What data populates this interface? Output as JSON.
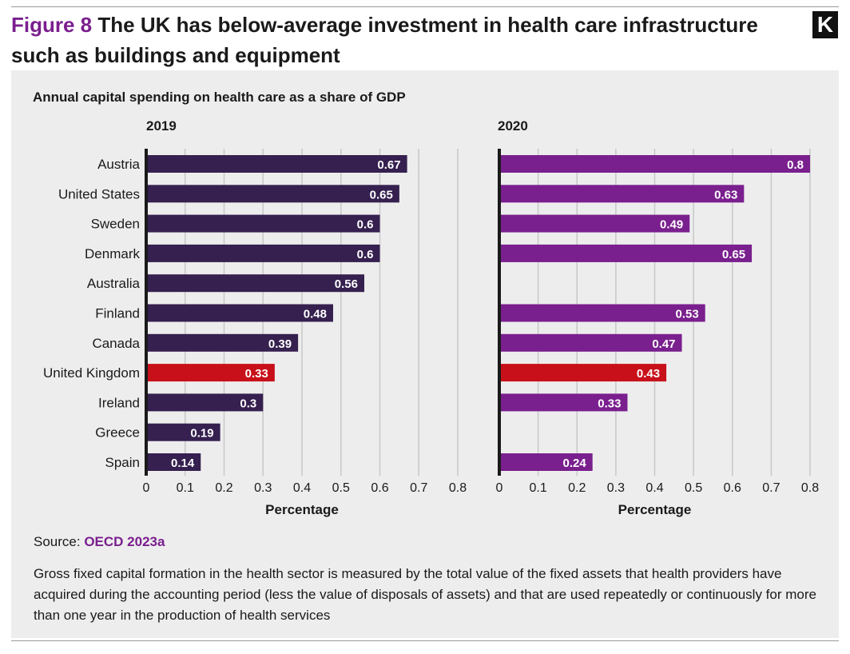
{
  "figure": {
    "label": "Figure 8",
    "title": "The UK has below-average investment in health care infrastructure such as buildings and equipment",
    "logo": "K"
  },
  "chart_data": [
    {
      "type": "bar",
      "orientation": "horizontal",
      "title": "2019",
      "xlabel": "Percentage",
      "xlim": [
        0,
        0.8
      ],
      "xticks": [
        "0",
        "0.1",
        "0.2",
        "0.3",
        "0.4",
        "0.5",
        "0.6",
        "0.7",
        "0.8"
      ],
      "categories": [
        "Austria",
        "United States",
        "Sweden",
        "Denmark",
        "Australia",
        "Finland",
        "Canada",
        "United Kingdom",
        "Ireland",
        "Greece",
        "Spain"
      ],
      "values": [
        0.67,
        0.65,
        0.6,
        0.6,
        0.56,
        0.48,
        0.39,
        0.33,
        0.3,
        0.19,
        0.14
      ],
      "labels": [
        "0.67",
        "0.65",
        "0.6",
        "0.6",
        "0.56",
        "0.48",
        "0.39",
        "0.33",
        "0.3",
        "0.19",
        "0.14"
      ],
      "grid": "vertical",
      "highlight": "United Kingdom"
    },
    {
      "type": "bar",
      "orientation": "horizontal",
      "title": "2020",
      "xlabel": "Percentage",
      "xlim": [
        0,
        0.8
      ],
      "xticks": [
        "0",
        "0.1",
        "0.2",
        "0.3",
        "0.4",
        "0.5",
        "0.6",
        "0.7",
        "0.8"
      ],
      "categories": [
        "Austria",
        "United States",
        "Sweden",
        "Denmark",
        "Australia",
        "Finland",
        "Canada",
        "United Kingdom",
        "Ireland",
        "Greece",
        "Spain"
      ],
      "values": [
        0.8,
        0.63,
        0.49,
        0.65,
        null,
        0.53,
        0.47,
        0.43,
        0.33,
        null,
        0.24
      ],
      "labels": [
        "0.8",
        "0.63",
        "0.49",
        "0.65",
        "",
        "0.53",
        "0.47",
        "0.43",
        "0.33",
        "",
        "0.24"
      ],
      "grid": "vertical",
      "highlight": "United Kingdom"
    }
  ],
  "chart_subtitle": "Annual capital spending on health care as a share of GDP",
  "colors": {
    "bar_2019": "#35204f",
    "bar_2020": "#7a1f8e",
    "highlight": "#c8101a",
    "axis": "#1a1a1a",
    "grid": "#c8c8c8",
    "panel_bg": "#ededed"
  },
  "source": {
    "prefix": "Source:",
    "link": "OECD 2023a"
  },
  "note": "Gross fixed capital formation in the health sector is measured by the total value of the fixed assets that health providers have acquired during the accounting period (less the value of disposals of assets) and that are used repeatedly or continuously for more than one year in the production of health services"
}
